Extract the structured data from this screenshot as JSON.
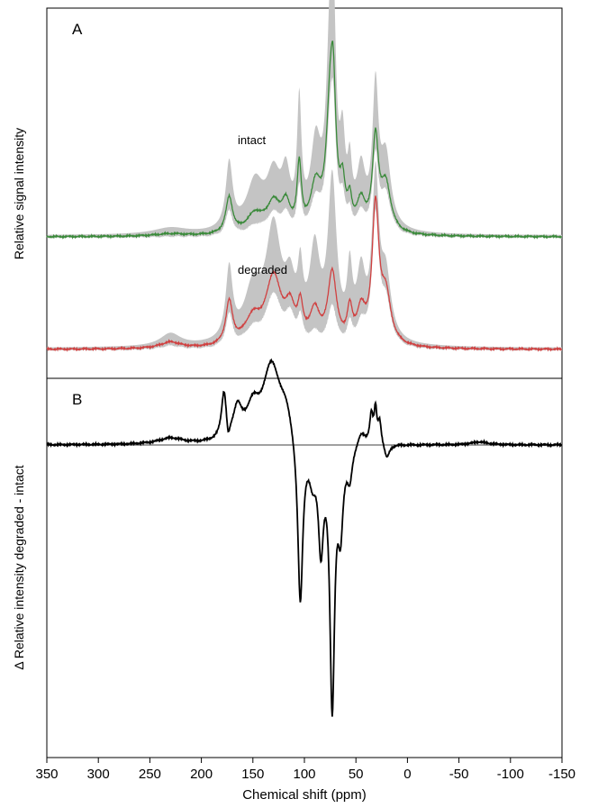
{
  "chart_data": [
    {
      "panel": "A",
      "type": "line",
      "ylabel": "Relative signal intensity",
      "x_range_ppm": [
        350,
        -150
      ],
      "series": [
        {
          "name": "intact",
          "color": "#3a8a3a",
          "band_color": "#c4c4c4",
          "baseline_offset": 0,
          "peaks_ppm": [
            [
              173,
              0.23,
              4,
              0.42
            ],
            [
              148,
              0.12,
              10,
              0.3
            ],
            [
              130,
              0.18,
              8,
              0.32
            ],
            [
              118,
              0.16,
              5,
              0.3
            ],
            [
              105,
              0.4,
              2.5,
              0.75
            ],
            [
              89,
              0.28,
              6,
              0.5
            ],
            [
              75,
              0.72,
              4.5,
              1.05
            ],
            [
              72,
              0.62,
              3,
              0.95
            ],
            [
              63,
              0.25,
              3,
              0.45
            ],
            [
              56,
              0.16,
              2.5,
              0.32
            ],
            [
              45,
              0.18,
              5,
              0.35
            ],
            [
              31,
              0.57,
              3.5,
              0.85
            ],
            [
              21,
              0.3,
              6,
              0.45
            ],
            [
              230,
              0.015,
              20,
              0.04
            ]
          ]
        },
        {
          "name": "degraded",
          "color": "#d04040",
          "band_color": "#c4c4c4",
          "baseline_offset": -1.25,
          "peaks_ppm": [
            [
              173,
              0.27,
              4,
              0.45
            ],
            [
              150,
              0.16,
              10,
              0.32
            ],
            [
              130,
              0.42,
              9,
              0.7
            ],
            [
              114,
              0.2,
              6,
              0.3
            ],
            [
              104,
              0.2,
              3,
              0.35
            ],
            [
              90,
              0.2,
              6,
              0.55
            ],
            [
              73,
              0.45,
              5,
              1.0
            ],
            [
              56,
              0.2,
              3,
              0.4
            ],
            [
              45,
              0.2,
              5,
              0.4
            ],
            [
              31,
              0.85,
              4,
              1.0
            ],
            [
              21,
              0.3,
              6,
              0.4
            ],
            [
              230,
              0.04,
              12,
              0.08
            ]
          ]
        }
      ],
      "annotations": [
        "intact",
        "degraded"
      ]
    },
    {
      "panel": "B",
      "type": "line",
      "ylabel": "Δ Relative intensity degraded - intact",
      "xlabel": "Chemical shift (ppm)",
      "x_range_ppm": [
        350,
        -150
      ],
      "y_range": [
        -0.93,
        0.22
      ],
      "zero_line": true,
      "series": [
        {
          "name": "",
          "color": "#000000",
          "peaks_ppm": [
            [
              230,
              0.02,
              15
            ],
            [
              178,
              0.16,
              3
            ],
            [
              174,
              -0.06,
              2
            ],
            [
              165,
              0.1,
              5
            ],
            [
              150,
              0.1,
              8
            ],
            [
              132,
              0.25,
              10
            ],
            [
              118,
              0.1,
              8
            ],
            [
              104,
              -0.56,
              3
            ],
            [
              92,
              -0.1,
              4
            ],
            [
              84,
              -0.32,
              3
            ],
            [
              73,
              -0.86,
              2.8
            ],
            [
              65,
              -0.25,
              3
            ],
            [
              56,
              -0.1,
              3
            ],
            [
              45,
              0.05,
              5
            ],
            [
              35,
              0.1,
              2
            ],
            [
              31,
              0.11,
              1.5
            ],
            [
              27,
              0.08,
              2
            ],
            [
              20,
              -0.05,
              3
            ],
            [
              -70,
              0.01,
              10
            ]
          ]
        }
      ]
    }
  ],
  "panel_labels": {
    "a": "A",
    "b": "B"
  },
  "x_ticks": [
    "350",
    "300",
    "250",
    "200",
    "150",
    "100",
    "50",
    "0",
    "-50",
    "-100",
    "-150"
  ],
  "x_tick_values": [
    350,
    300,
    250,
    200,
    150,
    100,
    50,
    0,
    -50,
    -100,
    -150
  ],
  "texts": {
    "ylabel_a": "Relative signal intensity",
    "ylabel_b": "Δ Relative intensity degraded - intact",
    "xlabel": "Chemical shift (ppm)",
    "intact_label": "intact",
    "degraded_label": "degraded"
  }
}
